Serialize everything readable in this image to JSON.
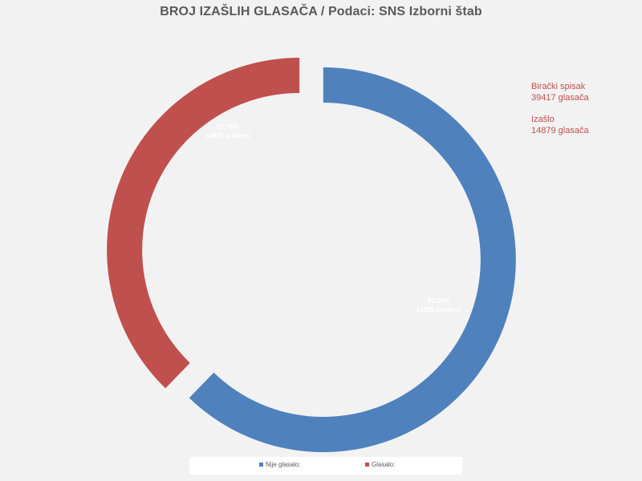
{
  "title": "BROJ IZAŠLIH GLASAČA / Podaci: SNS Izborni štab",
  "annotations": {
    "voter_list_label": "Birački spisak",
    "voter_list_value": "39417 glasača",
    "turnout_label": "Izašlo",
    "turnout_value": "14879 glasača",
    "color": "#c0504d"
  },
  "chart_data": {
    "type": "pie",
    "variant": "donut",
    "exploded": true,
    "title": "BROJ IZAŠLIH GLASAČA / Podaci: SNS Izborni štab",
    "categories": [
      "Nije glasalo:",
      "Glasalo:"
    ],
    "values": [
      24538,
      14879
    ],
    "percents": [
      62.25,
      37.75
    ],
    "labels": [
      {
        "percent": "62.25%",
        "count": "24538 građana"
      },
      {
        "percent": "37.75%",
        "count": "14879 građana"
      }
    ],
    "colors": [
      "#4f81bd",
      "#c0504d"
    ],
    "legend_position": "bottom"
  }
}
